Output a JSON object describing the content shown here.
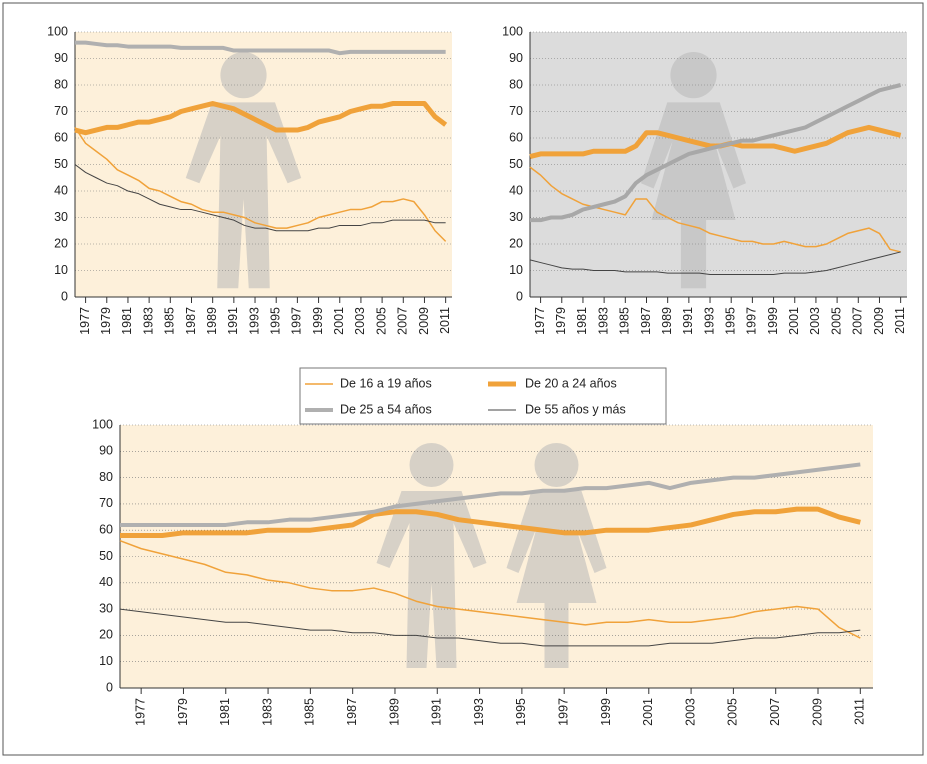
{
  "chart_data": [
    {
      "type": "line",
      "background": "#fdf0da",
      "grid": true,
      "xlim": [
        1976,
        2011.6
      ],
      "ylim": [
        0,
        100
      ],
      "yticks": [
        0,
        10,
        20,
        30,
        40,
        50,
        60,
        70,
        80,
        90,
        100
      ],
      "xticks": [
        1977,
        1979,
        1981,
        1983,
        1985,
        1987,
        1989,
        1991,
        1993,
        1995,
        1997,
        1999,
        2001,
        2003,
        2005,
        2007,
        2009,
        2011
      ],
      "x": [
        1976,
        1977,
        1978,
        1979,
        1980,
        1981,
        1982,
        1983,
        1984,
        1985,
        1986,
        1987,
        1988,
        1989,
        1990,
        1991,
        1992,
        1993,
        1994,
        1995,
        1996,
        1997,
        1998,
        1999,
        2000,
        2001,
        2002,
        2003,
        2004,
        2005,
        2006,
        2007,
        2008,
        2009,
        2010,
        2011
      ],
      "series": [
        {
          "name": "De 16 a 19 años",
          "color": "#f0a23a",
          "line_width": 1.5,
          "values": [
            64,
            58,
            55,
            52,
            48,
            46,
            44,
            41,
            40,
            38,
            36,
            35,
            33,
            32,
            32,
            31,
            30,
            28,
            27,
            26,
            26,
            27,
            28,
            30,
            31,
            32,
            33,
            33,
            34,
            36,
            36,
            37,
            36,
            31,
            25,
            21
          ]
        },
        {
          "name": "De 20 a 24 años",
          "color": "#f0a23a",
          "line_width": 5,
          "values": [
            63,
            62,
            63,
            64,
            64,
            65,
            66,
            66,
            67,
            68,
            70,
            71,
            72,
            73,
            72,
            71,
            69,
            67,
            65,
            63,
            63,
            63,
            64,
            66,
            67,
            68,
            70,
            71,
            72,
            72,
            73,
            73,
            73,
            73,
            68,
            65
          ]
        },
        {
          "name": "De 25 a 54 años",
          "color": "#b0b0b0",
          "line_width": 4,
          "values": [
            96,
            96,
            95.5,
            95,
            95,
            94.5,
            94.5,
            94.5,
            94.5,
            94.5,
            94,
            94,
            94,
            94,
            94,
            93,
            93,
            93,
            93,
            93,
            93,
            93,
            93,
            93,
            93,
            92,
            92.5,
            92.5,
            92.5,
            92.5,
            92.5,
            92.5,
            92.5,
            92.5,
            92.5,
            92.5
          ]
        },
        {
          "name": "De 55 años y más",
          "color": "#444444",
          "line_width": 1,
          "values": [
            50,
            47,
            45,
            43,
            42,
            40,
            39,
            37,
            35,
            34,
            33,
            33,
            32,
            31,
            30,
            29,
            27,
            26,
            26,
            25,
            25,
            25,
            25,
            26,
            26,
            27,
            27,
            27,
            28,
            28,
            29,
            29,
            29,
            29,
            28,
            28
          ]
        }
      ]
    },
    {
      "type": "line",
      "background": "#dcdcdc",
      "grid": true,
      "xlim": [
        1976,
        2011.6
      ],
      "ylim": [
        0,
        100
      ],
      "yticks": [
        0,
        10,
        20,
        30,
        40,
        50,
        60,
        70,
        80,
        90,
        100
      ],
      "xticks": [
        1977,
        1979,
        1981,
        1983,
        1985,
        1987,
        1989,
        1991,
        1993,
        1995,
        1997,
        1999,
        2001,
        2003,
        2005,
        2007,
        2009,
        2011
      ],
      "x": [
        1976,
        1977,
        1978,
        1979,
        1980,
        1981,
        1982,
        1983,
        1984,
        1985,
        1986,
        1987,
        1988,
        1989,
        1990,
        1991,
        1992,
        1993,
        1994,
        1995,
        1996,
        1997,
        1998,
        1999,
        2000,
        2001,
        2002,
        2003,
        2004,
        2005,
        2006,
        2007,
        2008,
        2009,
        2010,
        2011
      ],
      "series": [
        {
          "name": "De 16 a 19 años",
          "color": "#f0a23a",
          "line_width": 1.5,
          "values": [
            49,
            46,
            42,
            39,
            37,
            35,
            34,
            33,
            32,
            31,
            37,
            37,
            32,
            30,
            28,
            27,
            26,
            24,
            23,
            22,
            21,
            21,
            20,
            20,
            21,
            20,
            19,
            19,
            20,
            22,
            24,
            25,
            26,
            24,
            18,
            17
          ]
        },
        {
          "name": "De 20 a 24 años",
          "color": "#f0a23a",
          "line_width": 5,
          "values": [
            53,
            54,
            54,
            54,
            54,
            54,
            55,
            55,
            55,
            55,
            57,
            62,
            62,
            61,
            60,
            59,
            58,
            57,
            57,
            58,
            57,
            57,
            57,
            57,
            56,
            55,
            56,
            57,
            58,
            60,
            62,
            63,
            64,
            63,
            62,
            61
          ]
        },
        {
          "name": "De 25 a 54 años",
          "color": "#a8a8a8",
          "line_width": 4,
          "values": [
            29,
            29,
            30,
            30,
            31,
            33,
            34,
            35,
            36,
            38,
            43,
            46,
            48,
            50,
            52,
            54,
            55,
            56,
            57,
            58,
            59,
            59,
            60,
            61,
            62,
            63,
            64,
            66,
            68,
            70,
            72,
            74,
            76,
            78,
            79,
            80
          ]
        },
        {
          "name": "De 55 años y más",
          "color": "#444444",
          "line_width": 1,
          "values": [
            14,
            13,
            12,
            11,
            10.5,
            10.5,
            10,
            10,
            10,
            9.5,
            9.5,
            9.5,
            9.5,
            9,
            9,
            9,
            9,
            8.5,
            8.5,
            8.5,
            8.5,
            8.5,
            8.5,
            8.5,
            9,
            9,
            9,
            9.5,
            10,
            11,
            12,
            13,
            14,
            15,
            16,
            17
          ]
        }
      ]
    },
    {
      "type": "line",
      "background": "#fdf0da",
      "grid": true,
      "xlim": [
        1976,
        2011.6
      ],
      "ylim": [
        0,
        100
      ],
      "yticks": [
        0,
        10,
        20,
        30,
        40,
        50,
        60,
        70,
        80,
        90,
        100
      ],
      "xticks": [
        1977,
        1979,
        1981,
        1983,
        1985,
        1987,
        1989,
        1991,
        1993,
        1995,
        1997,
        1999,
        2001,
        2003,
        2005,
        2007,
        2009,
        2011
      ],
      "x": [
        1976,
        1977,
        1978,
        1979,
        1980,
        1981,
        1982,
        1983,
        1984,
        1985,
        1986,
        1987,
        1988,
        1989,
        1990,
        1991,
        1992,
        1993,
        1994,
        1995,
        1996,
        1997,
        1998,
        1999,
        2000,
        2001,
        2002,
        2003,
        2004,
        2005,
        2006,
        2007,
        2008,
        2009,
        2010,
        2011
      ],
      "series": [
        {
          "name": "De 16 a 19 años",
          "color": "#f0a23a",
          "line_width": 1.5,
          "values": [
            56,
            53,
            51,
            49,
            47,
            44,
            43,
            41,
            40,
            38,
            37,
            37,
            38,
            36,
            33,
            31,
            30,
            29,
            28,
            27,
            26,
            25,
            24,
            25,
            25,
            26,
            25,
            25,
            26,
            27,
            29,
            30,
            31,
            30,
            23,
            19
          ]
        },
        {
          "name": "De 20 a 24 años",
          "color": "#f0a23a",
          "line_width": 5,
          "values": [
            58,
            58,
            58,
            59,
            59,
            59,
            59,
            60,
            60,
            60,
            61,
            62,
            66,
            67,
            67,
            66,
            64,
            63,
            62,
            61,
            60,
            59,
            59,
            60,
            60,
            60,
            61,
            62,
            64,
            66,
            67,
            67,
            68,
            68,
            65,
            63
          ]
        },
        {
          "name": "De 25 a 54 años",
          "color": "#b0b0b0",
          "line_width": 4,
          "values": [
            62,
            62,
            62,
            62,
            62,
            62,
            63,
            63,
            64,
            64,
            65,
            66,
            67,
            69,
            70,
            71,
            72,
            73,
            74,
            74,
            75,
            75,
            76,
            76,
            77,
            78,
            76,
            78,
            79,
            80,
            80,
            81,
            82,
            83,
            84,
            85
          ]
        },
        {
          "name": "De 55 años y más",
          "color": "#444444",
          "line_width": 1,
          "values": [
            30,
            29,
            28,
            27,
            26,
            25,
            25,
            24,
            23,
            22,
            22,
            21,
            21,
            20,
            20,
            19,
            19,
            18,
            17,
            17,
            16,
            16,
            16,
            16,
            16,
            16,
            17,
            17,
            17,
            18,
            19,
            19,
            20,
            21,
            21,
            22
          ]
        }
      ]
    }
  ]
}
